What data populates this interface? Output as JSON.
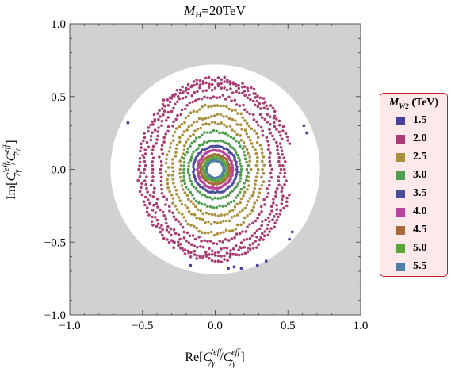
{
  "chart_data": {
    "type": "scatter",
    "title_var": "M",
    "title_sub": "H",
    "title_rest": "=20TeV",
    "xlabel_pre": "Re[",
    "xlabel_post": "]",
    "ylabel_pre": "Im[",
    "ylabel_post": "]",
    "axis_label_numerator": "C'eff 7γ",
    "axis_label_denominator": "Ceff 7γ",
    "xlim": [
      -1.0,
      1.0
    ],
    "ylim": [
      -1.0,
      1.0
    ],
    "xticks": [
      "−1.0",
      "−0.5",
      "0.0",
      "0.5",
      "1.0"
    ],
    "yticks": [
      "−1.0",
      "−0.5",
      "0.0",
      "0.5",
      "1.0"
    ],
    "tick_values": [
      -1.0,
      -0.5,
      0.0,
      0.5,
      1.0
    ],
    "excluded_region_color": "#d1d1d1",
    "allowed_region_radius": 0.72,
    "legend_title_var": "M",
    "legend_title_sub": "W2",
    "legend_title_unit": "(TeV)",
    "legend_placement": "right",
    "series": [
      {
        "name": "1.5",
        "color": "#4a3f9a",
        "rings": [],
        "points": [
          [
            -0.6,
            0.32
          ],
          [
            0.61,
            0.3
          ],
          [
            0.63,
            0.25
          ],
          [
            0.53,
            -0.43
          ],
          [
            0.51,
            -0.48
          ],
          [
            -0.17,
            -0.66
          ],
          [
            0.09,
            -0.68
          ],
          [
            0.13,
            -0.67
          ],
          [
            0.18,
            -0.68
          ],
          [
            0.29,
            -0.66
          ],
          [
            0.35,
            -0.63
          ]
        ]
      },
      {
        "name": "2.0",
        "color": "#a83d73",
        "rings": [
          [
            0.52,
            0.62
          ],
          [
            0.48,
            0.6
          ],
          [
            0.44,
            0.56
          ],
          [
            0.38,
            0.5
          ]
        ],
        "points": []
      },
      {
        "name": "2.5",
        "color": "#a9903e",
        "rings": [
          [
            0.33,
            0.44
          ],
          [
            0.29,
            0.37
          ],
          [
            0.24,
            0.32
          ]
        ],
        "points": []
      },
      {
        "name": "3.0",
        "color": "#4f9c4f",
        "rings": [
          [
            0.22,
            0.26
          ],
          [
            0.18,
            0.2
          ]
        ],
        "points": []
      },
      {
        "name": "3.5",
        "color": "#4f4c9c",
        "rings": [
          [
            0.15,
            0.16
          ]
        ],
        "points": []
      },
      {
        "name": "4.0",
        "color": "#b8459c",
        "rings": [
          [
            0.12,
            0.13
          ]
        ],
        "points": []
      },
      {
        "name": "4.5",
        "color": "#a86a3d",
        "rings": [
          [
            0.1,
            0.1
          ]
        ],
        "points": []
      },
      {
        "name": "5.0",
        "color": "#5aa63a",
        "rings": [
          [
            0.08,
            0.08
          ]
        ],
        "points": []
      },
      {
        "name": "5.5",
        "color": "#4f7fa5",
        "rings": [
          [
            0.06,
            0.06
          ]
        ],
        "points": []
      }
    ]
  }
}
